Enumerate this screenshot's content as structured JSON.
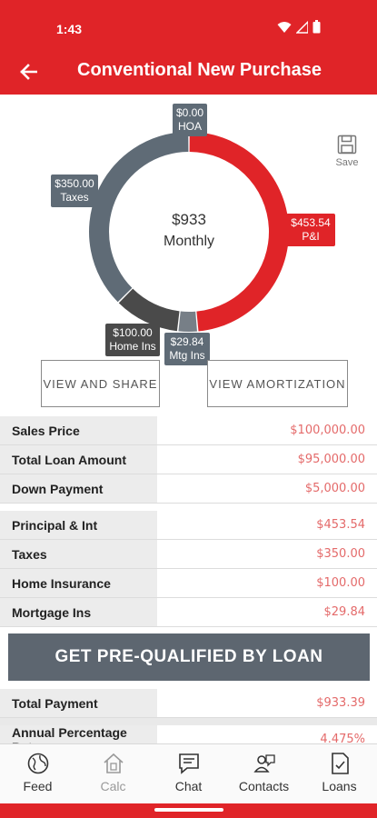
{
  "status": {
    "time": "1:43"
  },
  "header": {
    "title": "Conventional New Purchase"
  },
  "chart_data": {
    "type": "pie",
    "center_value": "$933",
    "center_label": "Monthly",
    "slices": [
      {
        "label": "P&I",
        "value": 453.54,
        "display": "$453.54",
        "color": "#e02428"
      },
      {
        "label": "Mtg Ins",
        "value": 29.84,
        "display": "$29.84",
        "color": "#777f87"
      },
      {
        "label": "Home Ins",
        "value": 100.0,
        "display": "$100.00",
        "color": "#4a4a4a"
      },
      {
        "label": "Taxes",
        "value": 350.0,
        "display": "$350.00",
        "color": "#5f6b76"
      },
      {
        "label": "HOA",
        "value": 0.0,
        "display": "$0.00",
        "color": "#777f87"
      }
    ]
  },
  "actions": {
    "save": "Save",
    "view_share": "VIEW AND SHARE",
    "view_amort": "VIEW AMORTIZATION",
    "prequal": "GET PRE-QUALIFIED BY LOAN"
  },
  "loan_rows": [
    {
      "label": "Sales Price",
      "value": "$100,000.00"
    },
    {
      "label": "Total Loan Amount",
      "value": "$95,000.00"
    },
    {
      "label": "Down Payment",
      "value": "$5,000.00"
    }
  ],
  "payment_rows": [
    {
      "label": "Principal & Int",
      "value": "$453.54"
    },
    {
      "label": "Taxes",
      "value": "$350.00"
    },
    {
      "label": "Home Insurance",
      "value": "$100.00"
    },
    {
      "label": "Mortgage Ins",
      "value": "$29.84"
    }
  ],
  "total_rows": [
    {
      "label": "Total Payment",
      "value": "$933.39"
    },
    {
      "label": "Annual Percentage Rate",
      "value": "4.475%"
    }
  ],
  "nav": [
    {
      "label": "Feed",
      "icon": "globe-icon"
    },
    {
      "label": "Calc",
      "icon": "home-calc-icon"
    },
    {
      "label": "Chat",
      "icon": "chat-icon"
    },
    {
      "label": "Contacts",
      "icon": "contacts-icon"
    },
    {
      "label": "Loans",
      "icon": "loans-icon"
    }
  ]
}
